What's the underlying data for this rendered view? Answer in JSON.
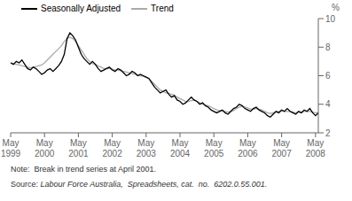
{
  "chart_data": {
    "type": "line",
    "y_label": "%",
    "annotations": [
      "Note:  Break in trend series at April 2001.",
      "Source: ",
      "Labour Force Australia,  Spreadsheets, cat.  no.  6202.0.55.001."
    ],
    "categories": [
      "May 1999",
      null,
      null,
      null,
      null,
      null,
      null,
      null,
      null,
      null,
      null,
      null,
      "May 2000",
      null,
      null,
      null,
      null,
      null,
      null,
      null,
      null,
      null,
      null,
      null,
      "May 2001",
      null,
      null,
      null,
      null,
      null,
      null,
      null,
      null,
      null,
      null,
      null,
      "May 2002",
      null,
      null,
      null,
      null,
      null,
      null,
      null,
      null,
      null,
      null,
      null,
      "May 2003",
      null,
      null,
      null,
      null,
      null,
      null,
      null,
      null,
      null,
      null,
      null,
      "May 2004",
      null,
      null,
      null,
      null,
      null,
      null,
      null,
      null,
      null,
      null,
      null,
      "May 2005",
      null,
      null,
      null,
      null,
      null,
      null,
      null,
      null,
      null,
      null,
      null,
      "May 2006",
      null,
      null,
      null,
      null,
      null,
      null,
      null,
      null,
      null,
      null,
      null,
      "May 2007",
      null,
      null,
      null,
      null,
      null,
      null,
      null,
      null,
      null,
      null,
      null,
      "May 2008",
      null
    ],
    "series": [
      {
        "name": "Seasonally Adjusted",
        "color": "#000000",
        "values": [
          6.9,
          6.8,
          7.0,
          6.9,
          7.1,
          6.8,
          6.5,
          6.4,
          6.6,
          6.5,
          6.3,
          6.1,
          6.2,
          6.4,
          6.5,
          6.3,
          6.5,
          6.7,
          7.0,
          7.5,
          8.6,
          9.0,
          8.8,
          8.5,
          8.0,
          7.5,
          7.2,
          7.0,
          6.8,
          7.0,
          6.8,
          6.5,
          6.3,
          6.4,
          6.5,
          6.6,
          6.4,
          6.3,
          6.5,
          6.4,
          6.2,
          6.0,
          6.1,
          6.3,
          6.2,
          6.0,
          6.1,
          6.0,
          5.9,
          5.8,
          5.5,
          5.2,
          5.0,
          4.8,
          4.9,
          5.0,
          4.7,
          4.5,
          4.6,
          4.3,
          4.2,
          4.0,
          4.1,
          4.3,
          4.5,
          4.3,
          4.2,
          4.0,
          4.1,
          3.9,
          3.8,
          3.6,
          3.5,
          3.4,
          3.5,
          3.6,
          3.4,
          3.3,
          3.5,
          3.7,
          3.8,
          4.0,
          3.9,
          3.7,
          3.6,
          3.5,
          3.7,
          3.8,
          3.6,
          3.5,
          3.4,
          3.2,
          3.1,
          3.3,
          3.5,
          3.4,
          3.6,
          3.5,
          3.7,
          3.5,
          3.4,
          3.3,
          3.5,
          3.4,
          3.6,
          3.5,
          3.7,
          3.4,
          3.2,
          3.4
        ]
      },
      {
        "name": "Trend",
        "color": "#aaaaaa",
        "values": [
          6.9,
          6.85,
          6.8,
          6.75,
          6.7,
          6.65,
          6.6,
          6.55,
          6.6,
          6.65,
          6.7,
          6.75,
          6.9,
          7.1,
          7.3,
          7.5,
          7.7,
          7.9,
          8.1,
          8.4,
          8.6,
          8.7,
          8.6,
          8.4,
          8.1,
          7.8,
          7.5,
          7.2,
          7.0,
          6.85,
          6.8,
          6.7,
          6.6,
          6.5,
          6.5,
          6.5,
          6.45,
          6.4,
          6.4,
          6.35,
          6.3,
          6.25,
          6.2,
          6.15,
          6.1,
          6.05,
          6.0,
          5.95,
          5.9,
          5.8,
          5.6,
          5.4,
          5.2,
          5.0,
          4.9,
          4.8,
          4.75,
          4.7,
          4.65,
          4.5,
          4.4,
          4.3,
          4.2,
          4.2,
          4.25,
          4.3,
          4.2,
          4.1,
          4.0,
          3.95,
          3.9,
          3.8,
          3.7,
          3.6,
          3.55,
          3.55,
          3.5,
          3.45,
          3.5,
          3.55,
          3.7,
          3.8,
          3.85,
          3.8,
          3.75,
          3.65,
          3.65,
          3.7,
          3.65,
          3.6,
          3.5,
          3.4,
          3.35,
          3.4,
          3.45,
          3.5,
          3.55,
          3.5,
          3.5,
          3.5,
          3.45,
          3.4,
          3.45,
          3.45,
          3.5,
          3.5,
          3.5,
          3.45,
          3.4,
          3.4
        ]
      }
    ],
    "ylim": [
      2,
      10
    ],
    "yticks": [
      2,
      4,
      6,
      8,
      10
    ],
    "grid": false,
    "legend": "upper left"
  }
}
